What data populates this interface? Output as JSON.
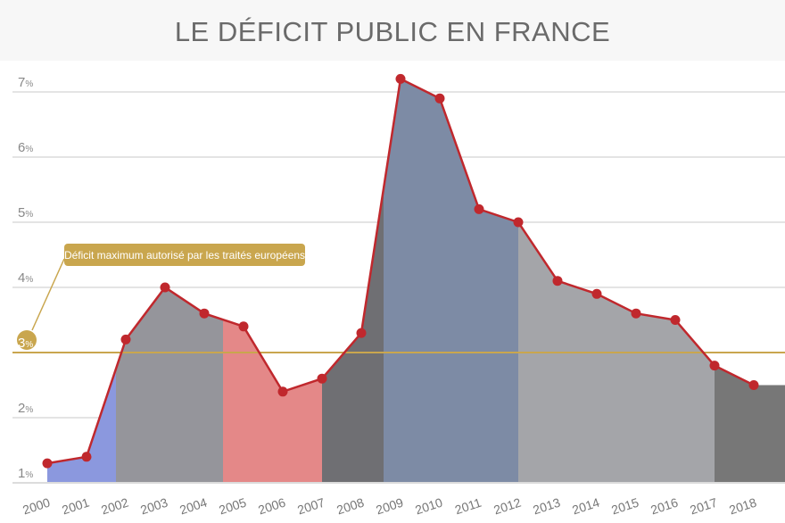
{
  "chart_data": {
    "type": "line",
    "title": "LE DÉFICIT PUBLIC EN FRANCE",
    "categories": [
      "2000",
      "2001",
      "2002",
      "2003",
      "2004",
      "2005",
      "2006",
      "2007",
      "2008",
      "2009",
      "2010",
      "2011",
      "2012",
      "2013",
      "2014",
      "2015",
      "2016",
      "2017",
      "2018"
    ],
    "values": [
      1.3,
      1.4,
      3.2,
      4.0,
      3.6,
      3.4,
      2.4,
      2.6,
      3.3,
      7.2,
      6.9,
      5.2,
      5.0,
      4.1,
      3.9,
      3.6,
      3.5,
      2.8,
      2.5
    ],
    "ylim": [
      1,
      7
    ],
    "y_ticks": [
      {
        "v": 1,
        "n": "1",
        "u": "%"
      },
      {
        "v": 2,
        "n": "2",
        "u": "%"
      },
      {
        "v": 3,
        "n": "3",
        "u": "%"
      },
      {
        "v": 4,
        "n": "4",
        "u": "%"
      },
      {
        "v": 5,
        "n": "5",
        "u": "%"
      },
      {
        "v": 6,
        "n": "6",
        "u": "%"
      },
      {
        "v": 7,
        "n": "7",
        "u": "%"
      }
    ],
    "grid": true,
    "reference_line": {
      "value": 3,
      "label": "Déficit maximum autorisé par les traités européens",
      "color": "#c9a64e"
    },
    "line_color": "#c0282d"
  }
}
